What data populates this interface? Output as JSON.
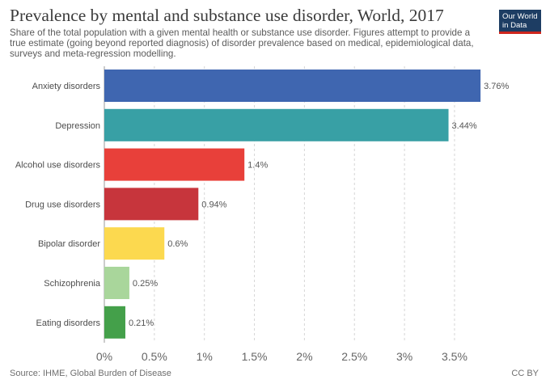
{
  "header": {
    "title": "Prevalence by mental and substance use disorder, World, 2017",
    "subtitle": "Share of the total population with a given mental health or substance use disorder. Figures attempt to provide a true estimate (going beyond reported diagnosis) of disorder prevalence based on medical, epidemiological data, surveys and meta-regression modelling.",
    "logo_line1": "Our World",
    "logo_line2": "in Data"
  },
  "footer": {
    "source": "Source: IHME, Global Burden of Disease",
    "license": "CC BY"
  },
  "chart_data": {
    "type": "bar",
    "orientation": "horizontal",
    "title": "Prevalence by mental and substance use disorder, World, 2017",
    "categories": [
      "Anxiety disorders",
      "Depression",
      "Alcohol use disorders",
      "Drug use disorders",
      "Bipolar disorder",
      "Schizophrenia",
      "Eating disorders"
    ],
    "values": [
      3.76,
      3.44,
      1.4,
      0.94,
      0.6,
      0.25,
      0.21
    ],
    "value_labels": [
      "3.76%",
      "3.44%",
      "1.4%",
      "0.94%",
      "0.6%",
      "0.25%",
      "0.21%"
    ],
    "colors": [
      "#3f66b0",
      "#38a0a5",
      "#e8403a",
      "#c7353c",
      "#fcd94f",
      "#a9d69b",
      "#44a04a"
    ],
    "xticks": [
      0,
      0.5,
      1,
      1.5,
      2,
      2.5,
      3,
      3.5
    ],
    "xtick_labels": [
      "0%",
      "0.5%",
      "1%",
      "1.5%",
      "2%",
      "2.5%",
      "3%",
      "3.5%"
    ],
    "xlim": [
      0,
      3.5
    ],
    "xlabel": "",
    "ylabel": "",
    "grid": "vertical dashed"
  }
}
